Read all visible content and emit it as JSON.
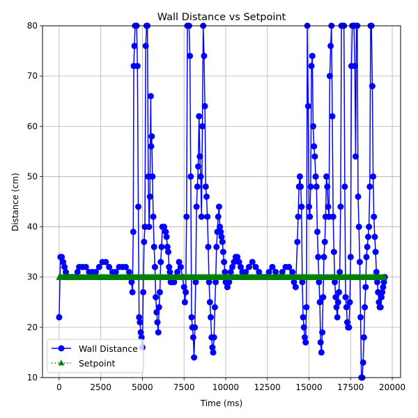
{
  "chart_data": {
    "type": "line",
    "title": "Wall Distance vs Setpoint",
    "xlabel": "Time (ms)",
    "ylabel": "Distance (cm)",
    "xlim": [
      -1000,
      20500
    ],
    "ylim": [
      10,
      80
    ],
    "xticks": [
      0,
      2500,
      5000,
      7500,
      10000,
      12500,
      15000,
      17500,
      20000
    ],
    "yticks": [
      10,
      20,
      30,
      40,
      50,
      60,
      70,
      80
    ],
    "grid": true,
    "legend_position": "lower-left",
    "series": [
      {
        "name": "Wall Distance",
        "color": "#0000ff",
        "line_style": "solid",
        "marker": "circle",
        "points": [
          [
            0,
            22
          ],
          [
            80,
            34
          ],
          [
            160,
            34
          ],
          [
            240,
            33
          ],
          [
            320,
            32
          ],
          [
            400,
            31
          ],
          [
            500,
            30
          ],
          [
            600,
            30
          ],
          [
            800,
            30
          ],
          [
            1000,
            30
          ],
          [
            1100,
            31
          ],
          [
            1200,
            32
          ],
          [
            1400,
            32
          ],
          [
            1600,
            32
          ],
          [
            1800,
            31
          ],
          [
            2000,
            31
          ],
          [
            2200,
            31
          ],
          [
            2400,
            32
          ],
          [
            2600,
            33
          ],
          [
            2800,
            33
          ],
          [
            3000,
            32
          ],
          [
            3200,
            31
          ],
          [
            3400,
            31
          ],
          [
            3600,
            32
          ],
          [
            3800,
            32
          ],
          [
            4000,
            32
          ],
          [
            4200,
            31
          ],
          [
            4350,
            29
          ],
          [
            4400,
            27
          ],
          [
            4450,
            39
          ],
          [
            4480,
            72
          ],
          [
            4520,
            76
          ],
          [
            4560,
            80
          ],
          [
            4650,
            80
          ],
          [
            4700,
            72
          ],
          [
            4750,
            44
          ],
          [
            4800,
            22
          ],
          [
            4850,
            21
          ],
          [
            4900,
            19
          ],
          [
            4950,
            18
          ],
          [
            5000,
            16
          ],
          [
            5050,
            27
          ],
          [
            5100,
            37
          ],
          [
            5150,
            40
          ],
          [
            5200,
            76
          ],
          [
            5250,
            80
          ],
          [
            5300,
            80
          ],
          [
            5350,
            50
          ],
          [
            5400,
            40
          ],
          [
            5450,
            46
          ],
          [
            5500,
            66
          ],
          [
            5520,
            56
          ],
          [
            5560,
            58
          ],
          [
            5600,
            50
          ],
          [
            5650,
            42
          ],
          [
            5700,
            36
          ],
          [
            5750,
            32
          ],
          [
            5800,
            26
          ],
          [
            5850,
            23
          ],
          [
            5900,
            21
          ],
          [
            5950,
            19
          ],
          [
            6000,
            24
          ],
          [
            6050,
            27
          ],
          [
            6100,
            33
          ],
          [
            6150,
            36
          ],
          [
            6200,
            40
          ],
          [
            6300,
            40
          ],
          [
            6400,
            39
          ],
          [
            6450,
            38
          ],
          [
            6500,
            36
          ],
          [
            6550,
            35
          ],
          [
            6600,
            32
          ],
          [
            6650,
            31
          ],
          [
            6700,
            29
          ],
          [
            6800,
            29
          ],
          [
            6900,
            29
          ],
          [
            7000,
            30
          ],
          [
            7100,
            31
          ],
          [
            7200,
            33
          ],
          [
            7300,
            32
          ],
          [
            7400,
            30
          ],
          [
            7500,
            28
          ],
          [
            7550,
            25
          ],
          [
            7600,
            27
          ],
          [
            7650,
            42
          ],
          [
            7700,
            80
          ],
          [
            7800,
            80
          ],
          [
            7850,
            74
          ],
          [
            7900,
            50
          ],
          [
            7950,
            22
          ],
          [
            8000,
            20
          ],
          [
            8050,
            18
          ],
          [
            8100,
            14
          ],
          [
            8150,
            20
          ],
          [
            8200,
            29
          ],
          [
            8250,
            44
          ],
          [
            8300,
            48
          ],
          [
            8350,
            52
          ],
          [
            8400,
            62
          ],
          [
            8450,
            54
          ],
          [
            8500,
            50
          ],
          [
            8550,
            42
          ],
          [
            8600,
            60
          ],
          [
            8650,
            80
          ],
          [
            8700,
            74
          ],
          [
            8750,
            64
          ],
          [
            8800,
            48
          ],
          [
            8850,
            46
          ],
          [
            8900,
            42
          ],
          [
            8950,
            36
          ],
          [
            9000,
            29
          ],
          [
            9050,
            25
          ],
          [
            9100,
            22
          ],
          [
            9150,
            18
          ],
          [
            9200,
            16
          ],
          [
            9250,
            15
          ],
          [
            9300,
            18
          ],
          [
            9350,
            24
          ],
          [
            9400,
            29
          ],
          [
            9450,
            36
          ],
          [
            9500,
            39
          ],
          [
            9550,
            42
          ],
          [
            9600,
            44
          ],
          [
            9650,
            40
          ],
          [
            9700,
            39
          ],
          [
            9750,
            38
          ],
          [
            9800,
            37
          ],
          [
            9850,
            35
          ],
          [
            9900,
            33
          ],
          [
            9950,
            31
          ],
          [
            10000,
            29
          ],
          [
            10100,
            28
          ],
          [
            10200,
            29
          ],
          [
            10300,
            31
          ],
          [
            10400,
            32
          ],
          [
            10500,
            33
          ],
          [
            10600,
            34
          ],
          [
            10700,
            34
          ],
          [
            10800,
            33
          ],
          [
            10900,
            32
          ],
          [
            11000,
            31
          ],
          [
            11200,
            31
          ],
          [
            11400,
            32
          ],
          [
            11600,
            33
          ],
          [
            11800,
            32
          ],
          [
            12000,
            31
          ],
          [
            12200,
            30
          ],
          [
            12400,
            30
          ],
          [
            12600,
            31
          ],
          [
            12800,
            32
          ],
          [
            13000,
            31
          ],
          [
            13200,
            30
          ],
          [
            13400,
            31
          ],
          [
            13600,
            32
          ],
          [
            13800,
            32
          ],
          [
            14000,
            31
          ],
          [
            14100,
            29
          ],
          [
            14200,
            28
          ],
          [
            14300,
            37
          ],
          [
            14350,
            42
          ],
          [
            14400,
            48
          ],
          [
            14450,
            50
          ],
          [
            14500,
            48
          ],
          [
            14550,
            44
          ],
          [
            14600,
            29
          ],
          [
            14650,
            22
          ],
          [
            14700,
            20
          ],
          [
            14750,
            18
          ],
          [
            14800,
            17
          ],
          [
            14850,
            24
          ],
          [
            14900,
            80
          ],
          [
            14950,
            64
          ],
          [
            15000,
            44
          ],
          [
            15050,
            42
          ],
          [
            15100,
            48
          ],
          [
            15150,
            72
          ],
          [
            15200,
            74
          ],
          [
            15250,
            60
          ],
          [
            15300,
            56
          ],
          [
            15350,
            54
          ],
          [
            15400,
            50
          ],
          [
            15450,
            48
          ],
          [
            15500,
            39
          ],
          [
            15550,
            34
          ],
          [
            15600,
            29
          ],
          [
            15650,
            25
          ],
          [
            15700,
            17
          ],
          [
            15750,
            15
          ],
          [
            15800,
            19
          ],
          [
            15850,
            26
          ],
          [
            15900,
            34
          ],
          [
            15950,
            37
          ],
          [
            16000,
            42
          ],
          [
            16050,
            50
          ],
          [
            16100,
            48
          ],
          [
            16150,
            44
          ],
          [
            16200,
            42
          ],
          [
            16250,
            70
          ],
          [
            16300,
            76
          ],
          [
            16350,
            80
          ],
          [
            16400,
            62
          ],
          [
            16450,
            42
          ],
          [
            16500,
            35
          ],
          [
            16550,
            29
          ],
          [
            16600,
            26
          ],
          [
            16650,
            24
          ],
          [
            16700,
            22
          ],
          [
            16750,
            25
          ],
          [
            16800,
            27
          ],
          [
            16850,
            31
          ],
          [
            16900,
            44
          ],
          [
            16950,
            80
          ],
          [
            17000,
            80
          ],
          [
            17050,
            80
          ],
          [
            17100,
            80
          ],
          [
            17150,
            48
          ],
          [
            17200,
            26
          ],
          [
            17250,
            24
          ],
          [
            17300,
            21
          ],
          [
            17350,
            20
          ],
          [
            17400,
            20
          ],
          [
            17450,
            25
          ],
          [
            17500,
            34
          ],
          [
            17550,
            72
          ],
          [
            17600,
            80
          ],
          [
            17650,
            80
          ],
          [
            17700,
            80
          ],
          [
            17750,
            72
          ],
          [
            17800,
            54
          ],
          [
            17850,
            80
          ],
          [
            17900,
            80
          ],
          [
            17950,
            46
          ],
          [
            18000,
            40
          ],
          [
            18050,
            33
          ],
          [
            18100,
            22
          ],
          [
            18150,
            10
          ],
          [
            18200,
            10
          ],
          [
            18250,
            13
          ],
          [
            18300,
            18
          ],
          [
            18350,
            24
          ],
          [
            18400,
            28
          ],
          [
            18450,
            34
          ],
          [
            18500,
            36
          ],
          [
            18550,
            38
          ],
          [
            18600,
            40
          ],
          [
            18650,
            48
          ],
          [
            18700,
            80
          ],
          [
            18750,
            80
          ],
          [
            18800,
            68
          ],
          [
            18850,
            50
          ],
          [
            18900,
            42
          ],
          [
            18950,
            38
          ],
          [
            19000,
            35
          ],
          [
            19050,
            31
          ],
          [
            19100,
            29
          ],
          [
            19150,
            27
          ],
          [
            19200,
            25
          ],
          [
            19250,
            24
          ],
          [
            19300,
            24
          ],
          [
            19350,
            26
          ],
          [
            19400,
            27
          ],
          [
            19450,
            28
          ],
          [
            19500,
            29
          ],
          [
            19550,
            30
          ]
        ]
      },
      {
        "name": "Setpoint",
        "color": "#008000",
        "line_style": "dotted",
        "marker": "triangle",
        "constant_value": 30,
        "x_start": 0,
        "x_end": 19550,
        "x_step": 80
      }
    ]
  }
}
